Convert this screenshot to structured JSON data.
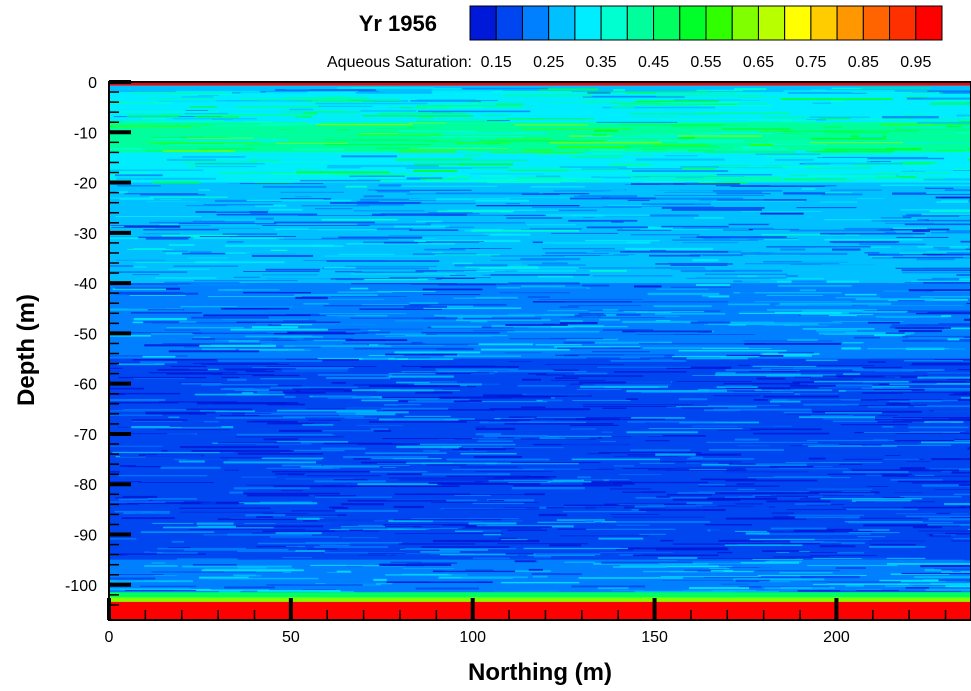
{
  "chart_data": {
    "type": "heatmap",
    "title": "Yr 1956",
    "colorbar": {
      "label": "Aqueous Saturation:",
      "tick_labels": [
        "0.15",
        "0.25",
        "0.35",
        "0.45",
        "0.55",
        "0.65",
        "0.75",
        "0.85",
        "0.95"
      ],
      "levels": [
        0.1,
        0.15,
        0.2,
        0.25,
        0.3,
        0.35,
        0.4,
        0.45,
        0.5,
        0.55,
        0.6,
        0.65,
        0.7,
        0.75,
        0.8,
        0.85,
        0.9,
        0.95,
        1.0
      ],
      "colors": [
        "#0018d8",
        "#0046f0",
        "#0080ff",
        "#00c0ff",
        "#00ecff",
        "#00ffd0",
        "#00ff9c",
        "#00ff60",
        "#00ff28",
        "#30ff00",
        "#80ff00",
        "#b8ff00",
        "#ffff00",
        "#ffcc00",
        "#ff9800",
        "#ff6400",
        "#ff3000",
        "#ff0000"
      ]
    },
    "xlabel": "Northing (m)",
    "ylabel": "Depth (m)",
    "xlim": [
      0,
      237
    ],
    "ylim": [
      -107,
      0
    ],
    "x_ticks": [
      "0",
      "50",
      "100",
      "150",
      "200"
    ],
    "y_ticks": [
      "0",
      "-10",
      "-20",
      "-30",
      "-40",
      "-50",
      "-60",
      "-70",
      "-80",
      "-90",
      "-100"
    ],
    "depth_profile": [
      {
        "depth_top": 0,
        "depth_bottom": -0.6,
        "saturation": 0.97
      },
      {
        "depth_top": -0.6,
        "depth_bottom": -2,
        "saturation": 0.28
      },
      {
        "depth_top": -2,
        "depth_bottom": -8,
        "saturation": 0.33
      },
      {
        "depth_top": -8,
        "depth_bottom": -14,
        "saturation": 0.42
      },
      {
        "depth_top": -14,
        "depth_bottom": -20,
        "saturation": 0.33
      },
      {
        "depth_top": -20,
        "depth_bottom": -40,
        "saturation": 0.25
      },
      {
        "depth_top": -40,
        "depth_bottom": -55,
        "saturation": 0.23
      },
      {
        "depth_top": -55,
        "depth_bottom": -78,
        "saturation": 0.18
      },
      {
        "depth_top": -78,
        "depth_bottom": -87,
        "saturation": 0.15
      },
      {
        "depth_top": -87,
        "depth_bottom": -95,
        "saturation": 0.19
      },
      {
        "depth_top": -95,
        "depth_bottom": -101.5,
        "saturation": 0.24
      },
      {
        "depth_top": -101.5,
        "depth_bottom": -102.5,
        "saturation": 0.45
      },
      {
        "depth_top": -102.5,
        "depth_bottom": -103.4,
        "saturation": 0.6
      },
      {
        "depth_top": -103.4,
        "depth_bottom": -107,
        "saturation": 0.97
      }
    ]
  }
}
